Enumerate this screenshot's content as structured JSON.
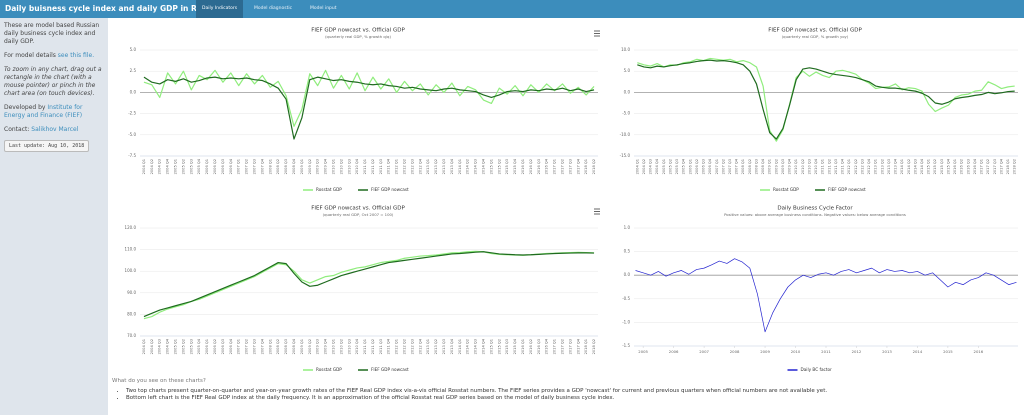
{
  "header": {
    "title": "Daily buisness cycle index and daily GDP in Russia",
    "tabs": [
      "Daily Indicators",
      "Model diagnostic",
      "Model input"
    ]
  },
  "sidebar": {
    "intro": "These are model based Russian daily business cycle index and daily GDP.",
    "details": "For model details ",
    "details_link": "see this file.",
    "zoom_note": "To zoom in any chart, drag out a rectangle in the chart (with a mouse pointer) or pinch in the chart area (on touch devices).",
    "developed": "Developed by ",
    "developed_link": "Institute for Energy and Finance (FIEF)",
    "contact": "Contact: ",
    "contact_link": "Salikhov Marcel",
    "last_update": "Last update: Aug 10, 2018"
  },
  "chart_data": [
    {
      "type": "line",
      "title": "FIEF GDP nowcast vs. Official GDP",
      "subtitle": "(quarterly real GDP, % growth q/q)",
      "categories": [
        "2004 Q1",
        "2004 Q2",
        "2004 Q3",
        "2004 Q4",
        "2005 Q1",
        "2005 Q2",
        "2005 Q3",
        "2005 Q4",
        "2006 Q1",
        "2006 Q2",
        "2006 Q3",
        "2006 Q4",
        "2007 Q1",
        "2007 Q2",
        "2007 Q3",
        "2007 Q4",
        "2008 Q1",
        "2008 Q2",
        "2008 Q3",
        "2008 Q4",
        "2009 Q1",
        "2009 Q2",
        "2009 Q3",
        "2009 Q4",
        "2010 Q1",
        "2010 Q2",
        "2010 Q3",
        "2010 Q4",
        "2011 Q1",
        "2011 Q2",
        "2011 Q3",
        "2011 Q4",
        "2012 Q1",
        "2012 Q2",
        "2012 Q3",
        "2012 Q4",
        "2013 Q1",
        "2013 Q2",
        "2013 Q3",
        "2013 Q4",
        "2014 Q1",
        "2014 Q2",
        "2014 Q3",
        "2014 Q4",
        "2015 Q1",
        "2015 Q2",
        "2015 Q3",
        "2015 Q4",
        "2016 Q1",
        "2016 Q2",
        "2016 Q3",
        "2016 Q4",
        "2017 Q1",
        "2017 Q2",
        "2017 Q3",
        "2017 Q4",
        "2018 Q1",
        "2018 Q2"
      ],
      "ylim": [
        -7.5,
        5.0
      ],
      "yticks": [
        {
          "value": 5,
          "label": "5.0"
        },
        {
          "value": 2.5,
          "label": "2.5"
        },
        {
          "value": 0,
          "label": "0.0"
        },
        {
          "value": -2.5,
          "label": "-2.5"
        },
        {
          "value": -5,
          "label": "-5.0"
        },
        {
          "value": -7.5,
          "label": "-7.5"
        }
      ],
      "series": [
        {
          "name": "Rosstat GDP",
          "color": "#90ed7d",
          "values": [
            1.2,
            0.9,
            -0.6,
            2.3,
            1.0,
            2.5,
            0.3,
            2.0,
            1.5,
            2.6,
            1.2,
            2.3,
            0.8,
            2.2,
            1.0,
            2.0,
            0.6,
            1.3,
            -0.4,
            -4.0,
            -2.0,
            2.2,
            0.8,
            2.6,
            0.5,
            2.0,
            0.4,
            2.3,
            0.2,
            1.8,
            0.4,
            1.6,
            0.0,
            1.3,
            0.2,
            1.0,
            -0.3,
            0.9,
            0.0,
            1.1,
            -0.4,
            0.7,
            0.3,
            -0.9,
            -1.3,
            0.5,
            -0.2,
            0.8,
            -0.4,
            0.9,
            0.0,
            1.0,
            0.2,
            1.0,
            -0.1,
            0.6,
            -0.3,
            0.7
          ]
        },
        {
          "name": "FIEF GDP nowcast",
          "color": "#1f6b1f",
          "values": [
            1.8,
            1.2,
            1.0,
            1.5,
            1.3,
            1.6,
            1.2,
            1.4,
            1.7,
            1.8,
            1.6,
            1.7,
            1.6,
            1.7,
            1.5,
            1.4,
            1.0,
            0.5,
            -0.8,
            -5.5,
            -3.0,
            1.5,
            1.8,
            1.6,
            1.4,
            1.5,
            1.3,
            1.2,
            1.0,
            0.9,
            1.0,
            0.8,
            0.7,
            0.5,
            0.6,
            0.4,
            0.3,
            0.2,
            0.4,
            0.5,
            0.3,
            0.2,
            0.1,
            -0.3,
            -0.6,
            -0.3,
            0.1,
            0.2,
            0.1,
            0.3,
            0.2,
            0.4,
            0.3,
            0.5,
            0.2,
            0.4,
            0.1,
            0.3
          ]
        }
      ]
    },
    {
      "type": "line",
      "title": "FIEF GDP nowcast vs. Official GDP",
      "subtitle": "(quarterly real GDP, % growth yoy)",
      "categories": [
        "2004 Q1",
        "2004 Q2",
        "2004 Q3",
        "2004 Q4",
        "2005 Q1",
        "2005 Q2",
        "2005 Q3",
        "2005 Q4",
        "2006 Q1",
        "2006 Q2",
        "2006 Q3",
        "2006 Q4",
        "2007 Q1",
        "2007 Q2",
        "2007 Q3",
        "2007 Q4",
        "2008 Q1",
        "2008 Q2",
        "2008 Q3",
        "2008 Q4",
        "2009 Q1",
        "2009 Q2",
        "2009 Q3",
        "2009 Q4",
        "2010 Q1",
        "2010 Q2",
        "2010 Q3",
        "2010 Q4",
        "2011 Q1",
        "2011 Q2",
        "2011 Q3",
        "2011 Q4",
        "2012 Q1",
        "2012 Q2",
        "2012 Q3",
        "2012 Q4",
        "2013 Q1",
        "2013 Q2",
        "2013 Q3",
        "2013 Q4",
        "2014 Q1",
        "2014 Q2",
        "2014 Q3",
        "2014 Q4",
        "2015 Q1",
        "2015 Q2",
        "2015 Q3",
        "2015 Q4",
        "2016 Q1",
        "2016 Q2",
        "2016 Q3",
        "2016 Q4",
        "2017 Q1",
        "2017 Q2",
        "2017 Q3",
        "2017 Q4",
        "2018 Q1",
        "2018 Q2"
      ],
      "ylim": [
        -15,
        10
      ],
      "yticks": [
        {
          "value": 10,
          "label": "10.0"
        },
        {
          "value": 5,
          "label": "5.0"
        },
        {
          "value": 0,
          "label": "0.0"
        },
        {
          "value": -5,
          "label": "-5.0"
        },
        {
          "value": -10,
          "label": "-10.0"
        },
        {
          "value": -15,
          "label": "-15.0"
        }
      ],
      "series": [
        {
          "name": "Rosstat GDP",
          "color": "#90ed7d",
          "values": [
            7.0,
            6.5,
            6.2,
            6.8,
            6.0,
            6.5,
            6.4,
            7.0,
            7.2,
            7.8,
            7.5,
            8.0,
            7.8,
            7.6,
            7.8,
            7.2,
            7.5,
            7.0,
            6.0,
            1.5,
            -9.0,
            -11.5,
            -8.8,
            -2.8,
            3.5,
            5.0,
            3.8,
            4.8,
            4.0,
            3.5,
            5.0,
            5.2,
            4.8,
            4.3,
            3.0,
            2.2,
            0.9,
            1.2,
            1.3,
            2.0,
            0.6,
            1.1,
            0.9,
            0.3,
            -2.8,
            -4.5,
            -3.7,
            -3.0,
            -1.2,
            -0.6,
            -0.4,
            0.3,
            0.5,
            2.5,
            1.8,
            0.9,
            1.3,
            1.5
          ]
        },
        {
          "name": "FIEF GDP nowcast",
          "color": "#1f6b1f",
          "values": [
            6.5,
            6.0,
            5.8,
            6.2,
            6.0,
            6.3,
            6.5,
            6.8,
            7.0,
            7.3,
            7.5,
            7.6,
            7.4,
            7.5,
            7.3,
            7.0,
            6.5,
            5.0,
            2.0,
            -4.0,
            -9.5,
            -11.0,
            -8.5,
            -3.0,
            3.0,
            5.5,
            5.8,
            5.5,
            5.0,
            4.5,
            4.2,
            4.0,
            3.8,
            3.5,
            3.0,
            2.5,
            1.5,
            1.2,
            1.0,
            1.0,
            0.8,
            0.5,
            0.3,
            -0.2,
            -1.0,
            -2.5,
            -2.8,
            -2.3,
            -1.5,
            -1.2,
            -1.0,
            -0.7,
            -0.5,
            0.0,
            -0.3,
            -0.1,
            0.2,
            0.3
          ]
        }
      ]
    },
    {
      "type": "line",
      "title": "FIEF GDP nowcast vs. Official GDP",
      "subtitle": "(quarterly real GDP, Oct 2007 = 100)",
      "categories": [
        "2004 Q1",
        "2004 Q2",
        "2004 Q3",
        "2004 Q4",
        "2005 Q1",
        "2005 Q2",
        "2005 Q3",
        "2005 Q4",
        "2006 Q1",
        "2006 Q2",
        "2006 Q3",
        "2006 Q4",
        "2007 Q1",
        "2007 Q2",
        "2007 Q3",
        "2007 Q4",
        "2008 Q1",
        "2008 Q2",
        "2008 Q3",
        "2008 Q4",
        "2009 Q1",
        "2009 Q2",
        "2009 Q3",
        "2009 Q4",
        "2010 Q1",
        "2010 Q2",
        "2010 Q3",
        "2010 Q4",
        "2011 Q1",
        "2011 Q2",
        "2011 Q3",
        "2011 Q4",
        "2012 Q1",
        "2012 Q2",
        "2012 Q3",
        "2012 Q4",
        "2013 Q1",
        "2013 Q2",
        "2013 Q3",
        "2013 Q4",
        "2014 Q1",
        "2014 Q2",
        "2014 Q3",
        "2014 Q4",
        "2015 Q1",
        "2015 Q2",
        "2015 Q3",
        "2015 Q4",
        "2016 Q1",
        "2016 Q2",
        "2016 Q3",
        "2016 Q4",
        "2017 Q1",
        "2017 Q2",
        "2017 Q3",
        "2017 Q4",
        "2018 Q1",
        "2018 Q2"
      ],
      "ylim": [
        70,
        120
      ],
      "yticks": [
        {
          "value": 120,
          "label": "120.0"
        },
        {
          "value": 110,
          "label": "110.0"
        },
        {
          "value": 100,
          "label": "100.0"
        },
        {
          "value": 90,
          "label": "90.0"
        },
        {
          "value": 80,
          "label": "80.0"
        },
        {
          "value": 70,
          "label": "70.0"
        }
      ],
      "series": [
        {
          "name": "Rosstat GDP",
          "color": "#90ed7d",
          "values": [
            78,
            79,
            81,
            82.5,
            83.5,
            84.5,
            86,
            87,
            88.5,
            90,
            91.5,
            93,
            94.5,
            96,
            97.5,
            99.5,
            101.5,
            103.5,
            103,
            100,
            96,
            94.5,
            96,
            97.5,
            98,
            99.5,
            100.5,
            101.5,
            102,
            103,
            104,
            104.5,
            105,
            106,
            106.5,
            107,
            107.2,
            107.5,
            108,
            108.5,
            108.6,
            109,
            109.2,
            109,
            108.2,
            107.8,
            107.6,
            107.5,
            107.4,
            107.6,
            107.9,
            108.2,
            108.3,
            108.5,
            108.6,
            108.7,
            108.6,
            108.5
          ]
        },
        {
          "name": "FIEF GDP nowcast",
          "color": "#1f6b1f",
          "values": [
            79,
            80.5,
            82,
            83,
            84,
            85,
            86,
            87.5,
            89,
            90.5,
            92,
            93.5,
            95,
            96.5,
            98,
            100,
            102,
            104,
            103.5,
            99,
            95,
            93,
            93.5,
            95,
            96.5,
            98,
            99,
            100,
            101,
            102,
            103,
            104,
            104.5,
            105,
            105.5,
            106,
            106.5,
            107,
            107.5,
            108,
            108.2,
            108.5,
            108.8,
            109,
            108.5,
            108,
            107.8,
            107.6,
            107.5,
            107.6,
            107.8,
            108,
            108.2,
            108.3,
            108.4,
            108.5,
            108.5,
            108.4
          ]
        }
      ]
    },
    {
      "type": "line",
      "title": "Daily Business Cycle Factor",
      "subtitle": "Positive values: above average business conditions. Negative values: below average conditions",
      "xlim": [
        2004.7,
        2017.3
      ],
      "xticks": [
        2005,
        2006,
        2007,
        2008,
        2009,
        2010,
        2011,
        2012,
        2013,
        2014,
        2015,
        2016
      ],
      "ylim": [
        -1.5,
        1.0
      ],
      "yticks": [
        {
          "value": 1,
          "label": "1.0"
        },
        {
          "value": 0.5,
          "label": "0.5"
        },
        {
          "value": 0,
          "label": "0.0"
        },
        {
          "value": -0.5,
          "label": "-0.5"
        },
        {
          "value": -1,
          "label": "-1.0"
        },
        {
          "value": -1.5,
          "label": "-1.5"
        }
      ],
      "x": [
        2004.75,
        2005,
        2005.25,
        2005.5,
        2005.75,
        2006,
        2006.25,
        2006.5,
        2006.75,
        2007,
        2007.25,
        2007.5,
        2007.75,
        2008,
        2008.25,
        2008.5,
        2008.75,
        2009,
        2009.25,
        2009.5,
        2009.75,
        2010,
        2010.25,
        2010.5,
        2010.75,
        2011,
        2011.25,
        2011.5,
        2011.75,
        2012,
        2012.25,
        2012.5,
        2012.75,
        2013,
        2013.25,
        2013.5,
        2013.75,
        2014,
        2014.25,
        2014.5,
        2014.75,
        2015,
        2015.25,
        2015.5,
        2015.75,
        2016,
        2016.25,
        2016.5,
        2016.75,
        2017,
        2017.25
      ],
      "series": [
        {
          "name": "Daily BC factor",
          "color": "#2424d0",
          "values": [
            0.1,
            0.05,
            0.0,
            0.08,
            -0.02,
            0.05,
            0.1,
            0.02,
            0.12,
            0.15,
            0.22,
            0.3,
            0.25,
            0.35,
            0.28,
            0.15,
            -0.4,
            -1.2,
            -0.8,
            -0.5,
            -0.25,
            -0.1,
            0.0,
            -0.05,
            0.02,
            0.05,
            0.0,
            0.08,
            0.12,
            0.05,
            0.1,
            0.15,
            0.05,
            0.12,
            0.08,
            0.1,
            0.05,
            0.08,
            0.0,
            0.05,
            -0.1,
            -0.25,
            -0.15,
            -0.2,
            -0.1,
            -0.05,
            0.05,
            0.0,
            -0.1,
            -0.2,
            -0.15
          ]
        }
      ]
    }
  ],
  "footer": {
    "question": "What do you see on these charts?",
    "bullets": [
      "Two top charts present quarter-on-quarter and year-on-year growth rates of the FIEF Real GDP index vis-a-vis official Rosstat numbers. The FIEF series provides a GDP 'nowcast' for current and previous quarters when official numbers are not available yet.",
      "Bottom left chart is the FIEF Real GDP index at the daily frequency. It is an approximation of the official Rosstat real GDP series based on the model of daily business cycle index."
    ]
  }
}
